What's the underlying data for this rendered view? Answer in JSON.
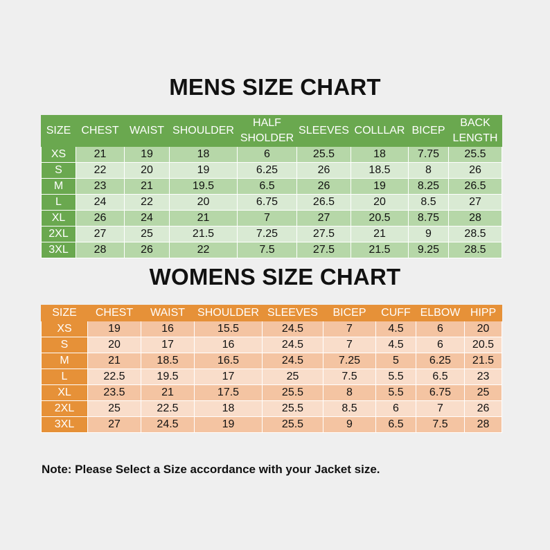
{
  "mens": {
    "title": "MENS SIZE CHART",
    "headers": [
      "SIZE",
      "CHEST",
      "WAIST",
      "SHOULDER",
      "HALF SHOLDER",
      "SLEEVES",
      "COLLLAR",
      "BICEP",
      "BACK LENGTH"
    ],
    "rows": [
      [
        "XS",
        "21",
        "19",
        "18",
        "6",
        "25.5",
        "18",
        "7.75",
        "25.5"
      ],
      [
        "S",
        "22",
        "20",
        "19",
        "6.25",
        "26",
        "18.5",
        "8",
        "26"
      ],
      [
        "M",
        "23",
        "21",
        "19.5",
        "6.5",
        "26",
        "19",
        "8.25",
        "26.5"
      ],
      [
        "L",
        "24",
        "22",
        "20",
        "6.75",
        "26.5",
        "20",
        "8.5",
        "27"
      ],
      [
        "XL",
        "26",
        "24",
        "21",
        "7",
        "27",
        "20.5",
        "8.75",
        "28"
      ],
      [
        "2XL",
        "27",
        "25",
        "21.5",
        "7.25",
        "27.5",
        "21",
        "9",
        "28.5"
      ],
      [
        "3XL",
        "28",
        "26",
        "22",
        "7.5",
        "27.5",
        "21.5",
        "9.25",
        "28.5"
      ]
    ]
  },
  "womens": {
    "title": "WOMENS SIZE CHART",
    "headers": [
      "SIZE",
      "CHEST",
      "WAIST",
      "SHOULDER",
      "SLEEVES",
      "BICEP",
      "CUFF",
      "ELBOW",
      "HIPP"
    ],
    "rows": [
      [
        "XS",
        "19",
        "16",
        "15.5",
        "24.5",
        "7",
        "4.5",
        "6",
        "20"
      ],
      [
        "S",
        "20",
        "17",
        "16",
        "24.5",
        "7",
        "4.5",
        "6",
        "20.5"
      ],
      [
        "M",
        "21",
        "18.5",
        "16.5",
        "24.5",
        "7.25",
        "5",
        "6.25",
        "21.5"
      ],
      [
        "L",
        "22.5",
        "19.5",
        "17",
        "25",
        "7.5",
        "5.5",
        "6.5",
        "23"
      ],
      [
        "XL",
        "23.5",
        "21",
        "17.5",
        "25.5",
        "8",
        "5.5",
        "6.75",
        "25"
      ],
      [
        "2XL",
        "25",
        "22.5",
        "18",
        "25.5",
        "8.5",
        "6",
        "7",
        "26"
      ],
      [
        "3XL",
        "27",
        "24.5",
        "19",
        "25.5",
        "9",
        "6.5",
        "7.5",
        "28"
      ]
    ]
  },
  "note": "Note: Please Select a Size accordance with your Jacket size.",
  "colors": {
    "mens_header": "#6aa84f",
    "mens_row_dark": "#b6d7a8",
    "mens_row_light": "#d9ead3",
    "womens_header": "#e69138",
    "womens_row_dark": "#f4c4a2",
    "womens_row_light": "#f9ddca",
    "background": "#efefef"
  }
}
